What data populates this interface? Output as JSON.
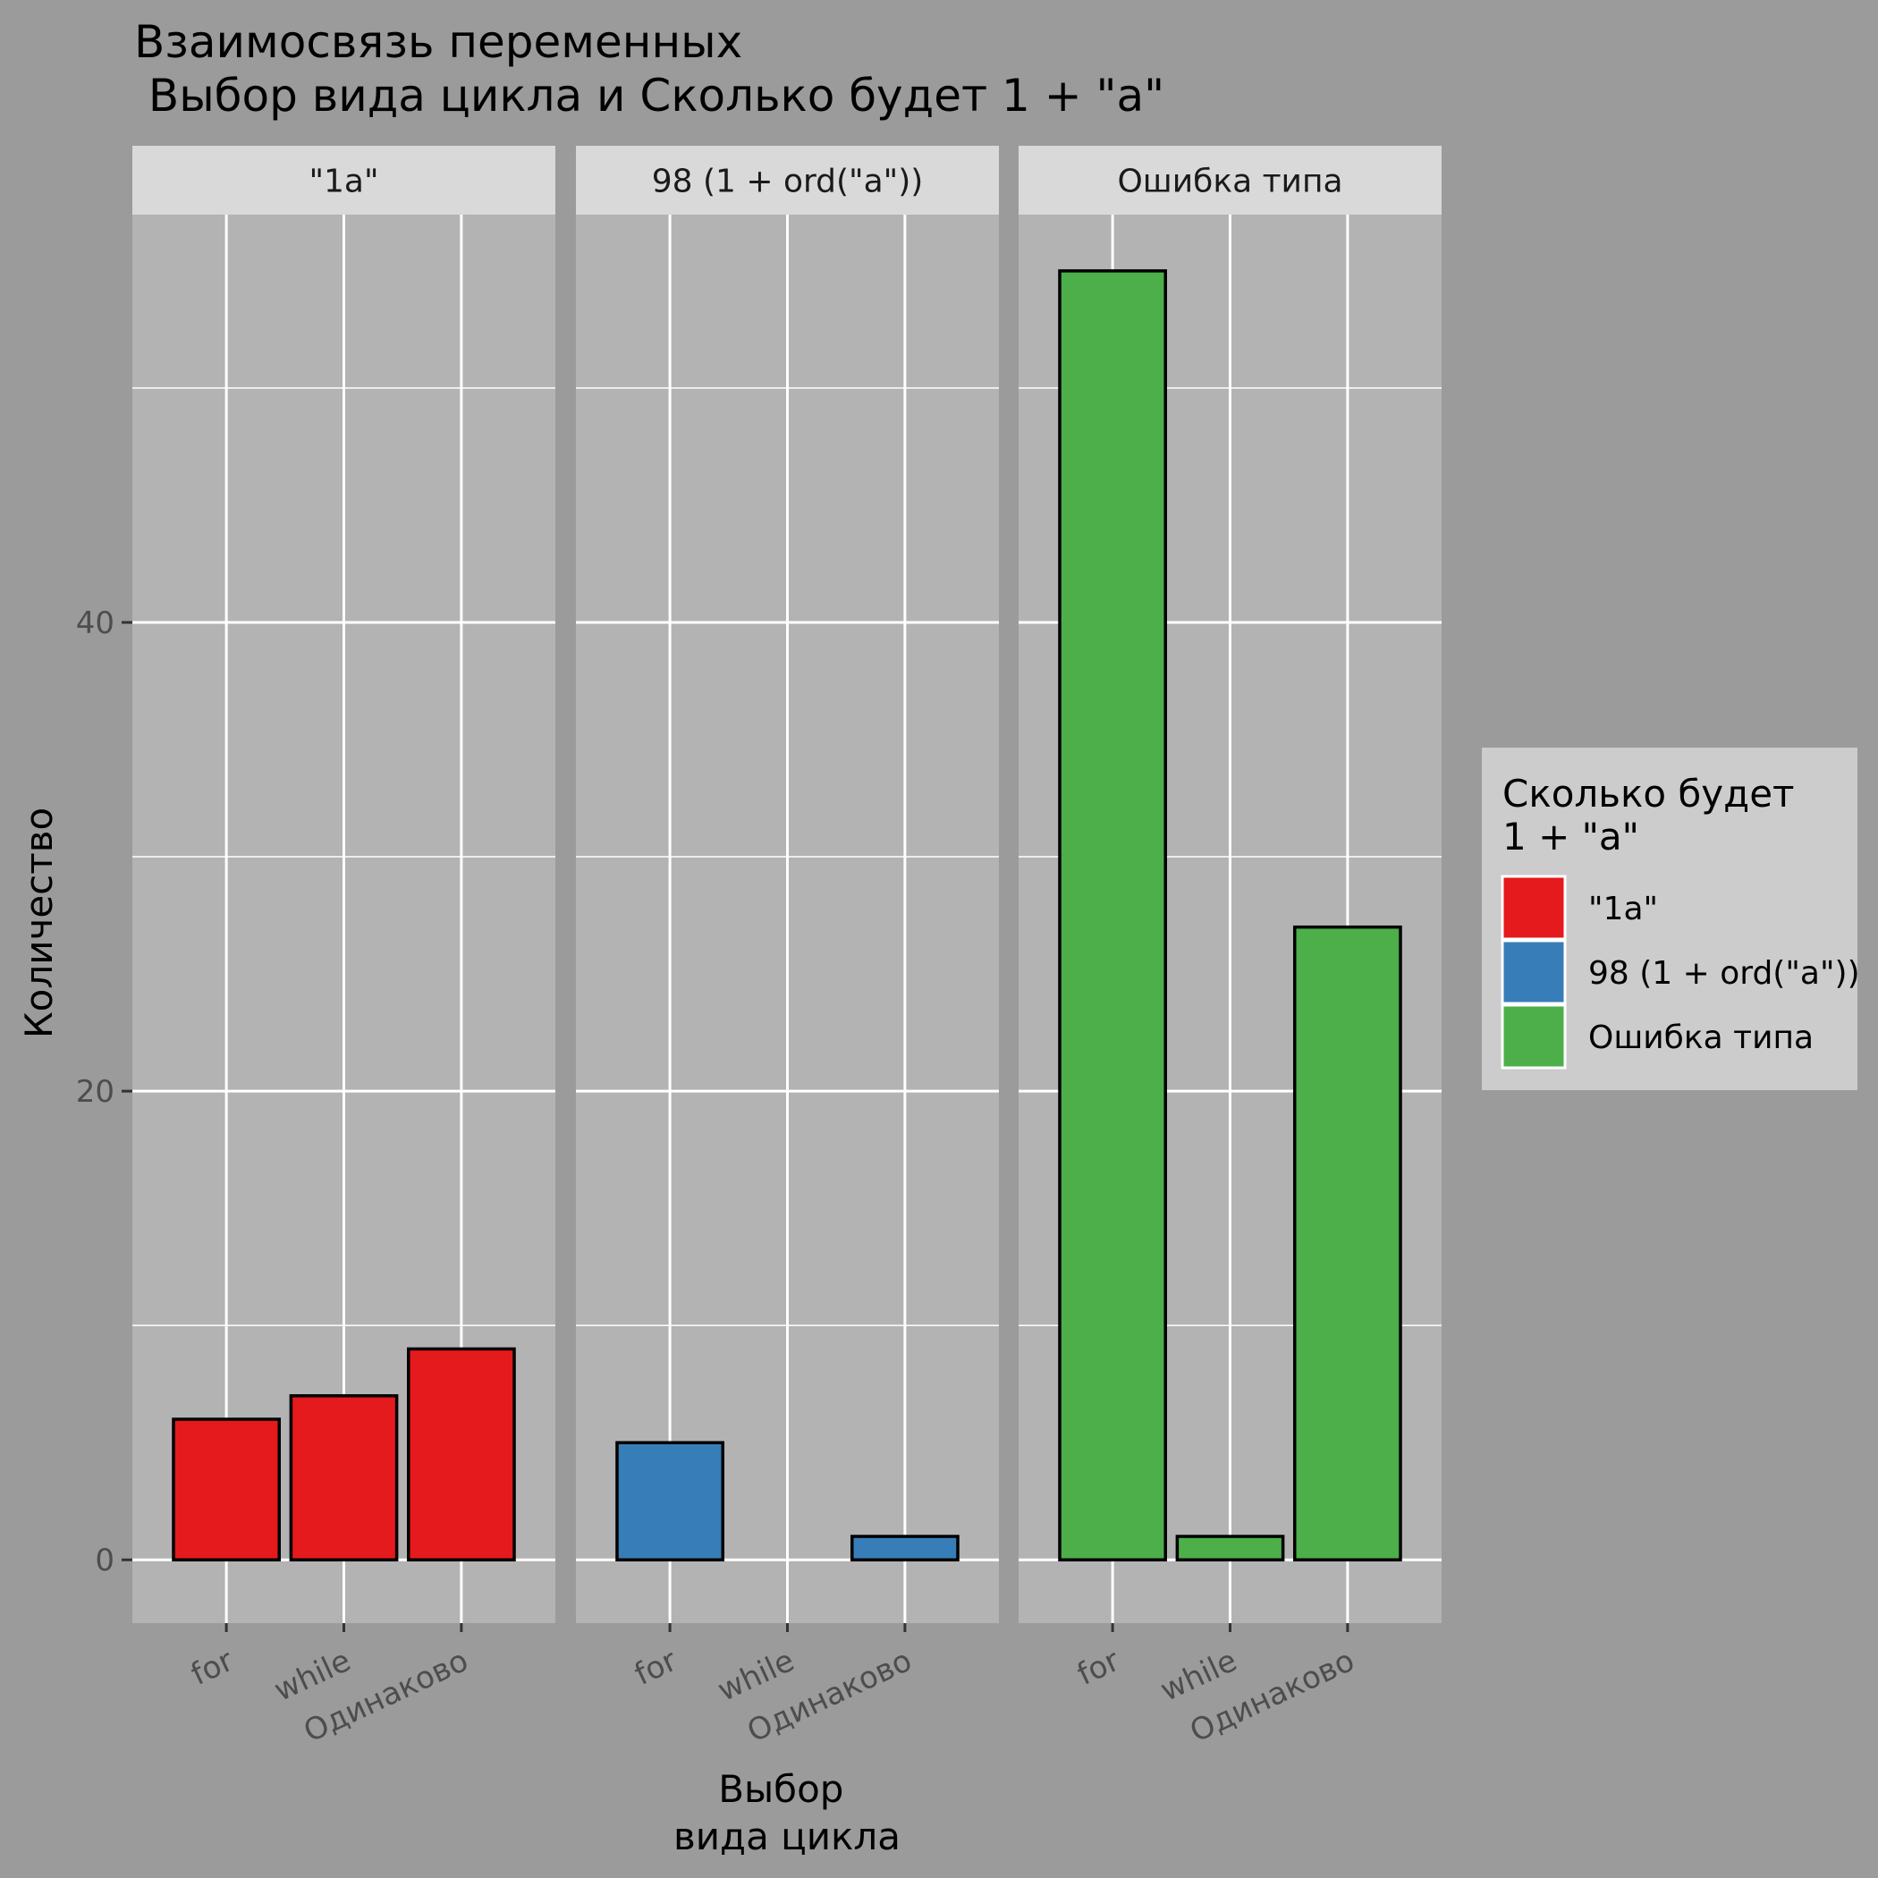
{
  "chart_data": {
    "type": "bar",
    "title": [
      "Взаимосвязь переменных",
      " Выбор вида цикла и Сколько будет 1 + \"a\""
    ],
    "xlabel": [
      "Выбор",
      "вида цикла"
    ],
    "ylabel": "Количество",
    "categories": [
      "for",
      "while",
      "Одинаково"
    ],
    "ylim": [
      -2.7,
      57.4
    ],
    "yticks": [
      0,
      20,
      40
    ],
    "grid": true,
    "legend": {
      "title": [
        "Сколько будет",
        "1 + \"a\""
      ],
      "placement": "right"
    },
    "series": [
      {
        "name": "\"1a\"",
        "color": "#e41a1c",
        "values": [
          6,
          7,
          9
        ]
      },
      {
        "name": "98 (1 + ord(\"a\"))",
        "color": "#377eb8",
        "values": [
          5,
          0,
          1
        ]
      },
      {
        "name": "Ошибка типа",
        "color": "#4daf4a",
        "values": [
          55,
          1,
          27
        ]
      }
    ],
    "facets": [
      "\"1a\"",
      "98 (1 + ord(\"a\"))",
      "Ошибка типа"
    ]
  }
}
